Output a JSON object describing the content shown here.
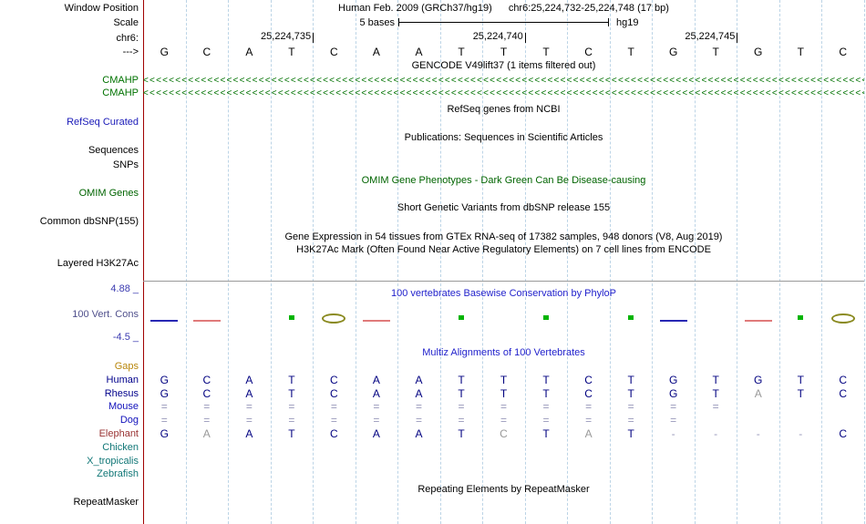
{
  "header": {
    "window_position_label": "Window Position",
    "assembly": "Human Feb. 2009 (GRCh37/hg19)",
    "position": "chr6:25,224,732-25,224,748 (17 bp)",
    "scale_row_label": "Scale",
    "scale_label": "5 bases",
    "scale_right": "hg19",
    "chrom_label": "chr6:",
    "strand_label": "--->",
    "coordinates": [
      "25,224,735",
      "25,224,740",
      "25,224,745"
    ]
  },
  "sequence": {
    "bases": [
      "G",
      "C",
      "A",
      "T",
      "C",
      "A",
      "A",
      "T",
      "T",
      "T",
      "C",
      "T",
      "G",
      "T",
      "G",
      "T",
      "C"
    ]
  },
  "tracks": {
    "gencode": {
      "title": "GENCODE V49lift37 (1 items filtered out)",
      "gene_label_1": "CMAHP",
      "gene_label_2": "CMAHP",
      "arrow_char": "<",
      "arrow_count": 115
    },
    "refseq": {
      "label": "RefSeq Curated",
      "title": "RefSeq genes from NCBI"
    },
    "pubs": {
      "title": "Publications: Sequences in Scientific Articles"
    },
    "sequences_label": "Sequences",
    "snps_label": "SNPs",
    "omim": {
      "label": "OMIM Genes",
      "title": "OMIM Gene Phenotypes - Dark Green Can Be Disease-causing"
    },
    "dbsnp": {
      "label": "Common dbSNP(155)",
      "title": "Short Genetic Variants from dbSNP release 155"
    },
    "gtex": {
      "title": "Gene Expression in 54 tissues from GTEx RNA-seq of 17382 samples, 948 donors (V8, Aug 2019)"
    },
    "h3k27ac": {
      "label": "Layered H3K27Ac",
      "title": "H3K27Ac Mark (Often Found Near Active Regulatory Elements) on 7 cell lines from ENCODE"
    },
    "repeatmasker": {
      "label": "RepeatMasker",
      "title": "Repeating Elements by RepeatMasker"
    }
  },
  "conservation": {
    "label": "100 Vert. Cons",
    "title": "100 vertebrates Basewise Conservation by PhyloP",
    "max_label": "4.88 _",
    "min_label": "-4.5 _",
    "marks": [
      {
        "col": 1,
        "shape": "line",
        "color": "blue"
      },
      {
        "col": 2,
        "shape": "line",
        "color": "red"
      },
      {
        "col": 4,
        "shape": "dot",
        "color": "green"
      },
      {
        "col": 5,
        "shape": "oval",
        "color": "olive"
      },
      {
        "col": 6,
        "shape": "line",
        "color": "red"
      },
      {
        "col": 8,
        "shape": "dot",
        "color": "green"
      },
      {
        "col": 10,
        "shape": "dot",
        "color": "green"
      },
      {
        "col": 12,
        "shape": "dot",
        "color": "green"
      },
      {
        "col": 13,
        "shape": "line",
        "color": "blue"
      },
      {
        "col": 15,
        "shape": "line",
        "color": "red"
      },
      {
        "col": 16,
        "shape": "dot",
        "color": "green"
      },
      {
        "col": 17,
        "shape": "oval",
        "color": "olive"
      }
    ]
  },
  "multiz": {
    "title": "Multiz Alignments of 100 Vertebrates",
    "rows": [
      {
        "name": "Gaps",
        "cells": [],
        "faded": []
      },
      {
        "name": "Human",
        "cells": [
          "G",
          "C",
          "A",
          "T",
          "C",
          "A",
          "A",
          "T",
          "T",
          "T",
          "C",
          "T",
          "G",
          "T",
          "G",
          "T",
          "C"
        ],
        "faded": []
      },
      {
        "name": "Rhesus",
        "cells": [
          "G",
          "C",
          "A",
          "T",
          "C",
          "A",
          "A",
          "T",
          "T",
          "T",
          "C",
          "T",
          "G",
          "T",
          "A",
          "T",
          "C"
        ],
        "faded": [
          15
        ]
      },
      {
        "name": "Mouse",
        "cells": [
          "=",
          "=",
          "=",
          "=",
          "=",
          "=",
          "=",
          "=",
          "=",
          "=",
          "=",
          "=",
          "=",
          "=",
          "",
          "",
          ""
        ],
        "faded": []
      },
      {
        "name": "Dog",
        "cells": [
          "=",
          "=",
          "=",
          "=",
          "=",
          "=",
          "=",
          "=",
          "=",
          "=",
          "=",
          "=",
          "=",
          "",
          "",
          "",
          ""
        ],
        "faded": []
      },
      {
        "name": "Elephant",
        "cells": [
          "G",
          "A",
          "A",
          "T",
          "C",
          "A",
          "A",
          "T",
          "C",
          "T",
          "A",
          "T",
          "-",
          "-",
          "-",
          "-",
          "C"
        ],
        "faded": [
          2,
          9,
          11
        ]
      },
      {
        "name": "Chicken",
        "cells": [],
        "faded": []
      },
      {
        "name": "X_tropicalis",
        "cells": [],
        "faded": []
      },
      {
        "name": "Zebrafish",
        "cells": [],
        "faded": []
      }
    ]
  },
  "colors": {
    "gene_green": "#007200",
    "omim_green": "#006400",
    "refseq_blue": "#1a1ab8",
    "title_blue": "#2222cc",
    "axis_blue": "#3a3ab0",
    "cons_label": "#50508c",
    "red_line": "#a00000",
    "gridline": "#bcd4e6",
    "base_navy": "#000080",
    "faded_gray": "#999999",
    "sym_blue": "#9999bb",
    "phylop_blue": "#2828b4",
    "phylop_red": "#e07a7a",
    "phylop_green": "#00b400",
    "phylop_olive": "#8a8a20",
    "species": {
      "Gaps": "#b8860b",
      "Human": "#00008b",
      "Rhesus": "#00008b",
      "Mouse": "#1111bb",
      "Dog": "#1111bb",
      "Elephant": "#993333",
      "Chicken": "#117777",
      "X_tropicalis": "#117777",
      "Zebrafish": "#117777"
    }
  }
}
